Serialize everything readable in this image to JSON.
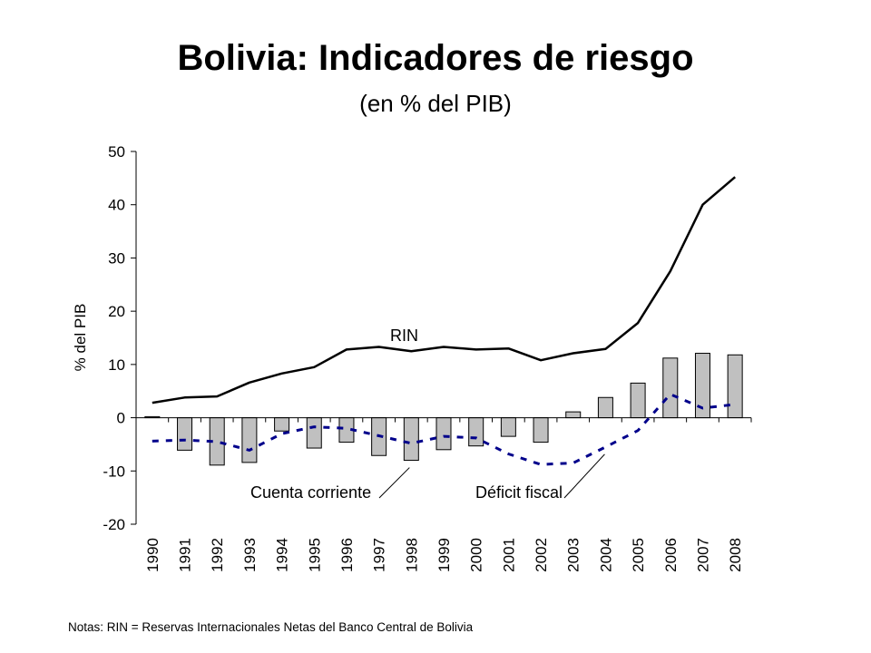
{
  "title": "Bolivia: Indicadores de riesgo",
  "subtitle": "(en % del PIB)",
  "note": "Notas: RIN = Reservas Internacionales Netas del Banco Central de Bolivia",
  "chart_data": {
    "type": "bar",
    "title": "Bolivia: Indicadores de riesgo",
    "subtitle": "(en % del PIB)",
    "xlabel": "",
    "ylabel": "% del PIB",
    "ylim": [
      -20,
      50
    ],
    "yticks": [
      -20,
      -10,
      0,
      10,
      20,
      30,
      40,
      50
    ],
    "grid": false,
    "categories": [
      "1990",
      "1991",
      "1992",
      "1993",
      "1994",
      "1995",
      "1996",
      "1997",
      "1998",
      "1999",
      "2000",
      "2001",
      "2002",
      "2003",
      "2004",
      "2005",
      "2006",
      "2007",
      "2008"
    ],
    "series": [
      {
        "name": "Cuenta corriente",
        "type": "bar",
        "color": "#c0c0c0",
        "values": [
          0.2,
          -6.1,
          -8.9,
          -8.4,
          -2.5,
          -5.7,
          -4.6,
          -7.1,
          -8.0,
          -6.0,
          -5.3,
          -3.5,
          -4.6,
          1.1,
          3.8,
          6.5,
          11.2,
          12.1,
          11.8
        ]
      },
      {
        "name": "RIN",
        "type": "line",
        "color": "#000000",
        "values": [
          2.8,
          3.8,
          4.0,
          6.6,
          8.3,
          9.5,
          12.8,
          13.3,
          12.5,
          13.3,
          12.8,
          13.0,
          10.8,
          12.1,
          12.9,
          17.8,
          27.5,
          40.0,
          45.2
        ]
      },
      {
        "name": "Déficit fiscal",
        "type": "line",
        "color": "#00008b",
        "values": [
          -4.4,
          -4.2,
          -4.5,
          -6.1,
          -3.0,
          -1.7,
          -2.0,
          -3.4,
          -4.8,
          -3.5,
          -3.8,
          -6.8,
          -8.8,
          -8.5,
          -5.5,
          -2.4,
          4.4,
          1.8,
          2.5
        ]
      }
    ],
    "annotations": [
      {
        "text": "RIN",
        "series": "RIN"
      },
      {
        "text": "Cuenta corriente",
        "series": "Cuenta corriente"
      },
      {
        "text": "Déficit fiscal",
        "series": "Déficit fiscal"
      }
    ]
  }
}
